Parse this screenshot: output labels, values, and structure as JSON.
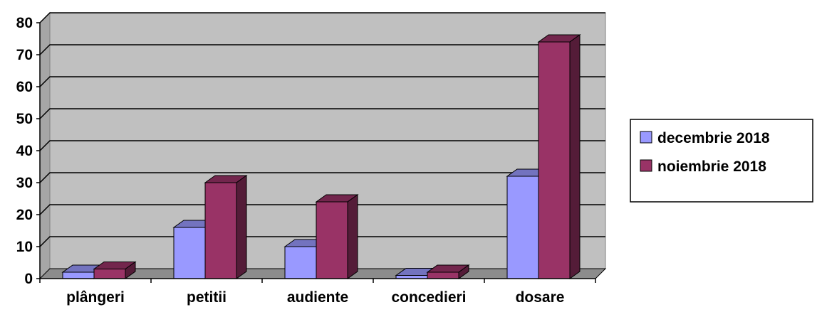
{
  "chart_data": {
    "type": "bar",
    "title": "",
    "xlabel": "",
    "ylabel": "",
    "categories": [
      "plângeri",
      "petitii",
      "audiente",
      "concedieri",
      "dosare"
    ],
    "series": [
      {
        "name": "decembrie 2018",
        "values": [
          2,
          16,
          10,
          1,
          32
        ],
        "color": "#9999ff"
      },
      {
        "name": "noiembrie 2018",
        "values": [
          3,
          30,
          24,
          2,
          74
        ],
        "color": "#993366"
      }
    ],
    "ylim": [
      0,
      80
    ],
    "yticks": [
      0,
      10,
      20,
      30,
      40,
      50,
      60,
      70,
      80
    ],
    "grid": true,
    "legend": "right",
    "plot_background": "#c0c0c0",
    "three_d": true
  }
}
